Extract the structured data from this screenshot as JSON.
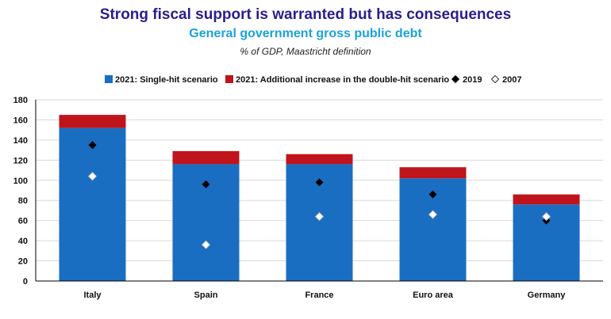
{
  "header": {
    "title": "Strong fiscal support is warranted but has consequences",
    "subtitle": "General government gross public debt",
    "unit": "% of GDP, Maastricht definition"
  },
  "colors": {
    "single_hit": "#1a6ec2",
    "double_hit": "#c0141c",
    "marker_2019": "#000000",
    "marker_2007": "#ffffff"
  },
  "chart_data": {
    "type": "bar",
    "stacked": true,
    "categories": [
      "Italy",
      "Spain",
      "France",
      "Euro area",
      "Germany"
    ],
    "series": [
      {
        "name": "2021: Single-hit scenario",
        "kind": "bar",
        "values": [
          152,
          116,
          116,
          102,
          76
        ]
      },
      {
        "name": "2021: Additional increase in the double-hit scenario",
        "kind": "bar",
        "values": [
          13,
          13,
          10,
          11,
          10
        ]
      },
      {
        "name": "2019",
        "kind": "marker",
        "values": [
          135,
          96,
          98,
          86,
          60
        ]
      },
      {
        "name": "2007",
        "kind": "marker",
        "values": [
          104,
          36,
          64,
          66,
          64
        ]
      }
    ],
    "ylim": [
      0,
      180
    ],
    "yticks": [
      0,
      20,
      40,
      60,
      80,
      100,
      120,
      140,
      160,
      180
    ],
    "grid": true,
    "legend_position": "top"
  }
}
